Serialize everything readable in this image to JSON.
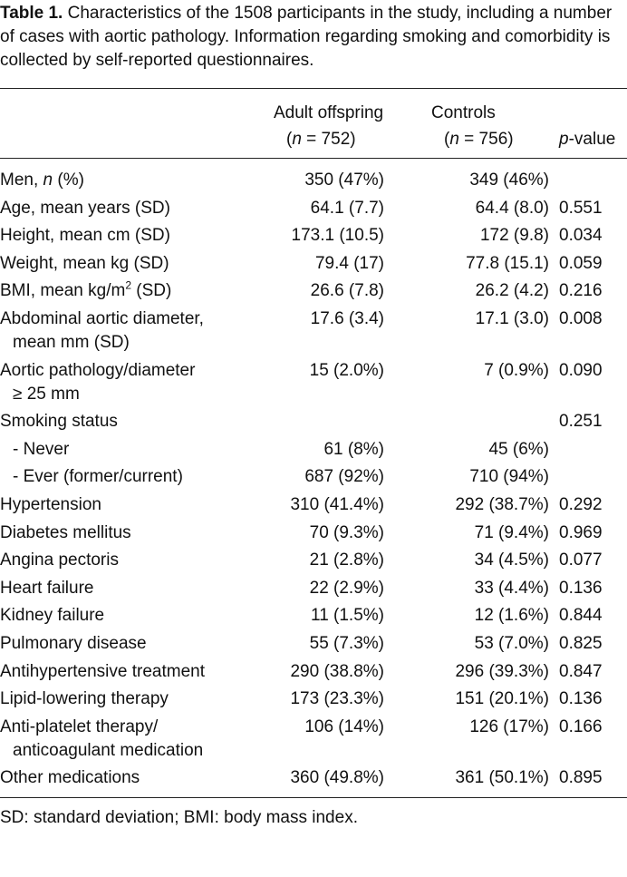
{
  "caption": {
    "label": "Table 1.",
    "text": "Characteristics of the 1508 participants in the study, including a number of cases with aortic pathology. Information regarding smoking and comorbidity is collected by self-reported questionnaires."
  },
  "table": {
    "columns": [
      [
        [
          "Adult offspring"
        ],
        [
          "(",
          {
            "text": "n",
            "style": "italic"
          },
          " = 752)"
        ]
      ],
      [
        [
          "Controls"
        ],
        [
          "(",
          {
            "text": "n",
            "style": "italic"
          },
          " = 756)"
        ]
      ],
      [
        [
          {
            "text": "p",
            "style": "italic"
          },
          "-value"
        ]
      ]
    ],
    "rows": [
      {
        "label": [
          [
            "Men, ",
            {
              "text": "n",
              "style": "italic"
            },
            " (%)"
          ]
        ],
        "values": [
          "350 (47%)",
          "349 (46%)",
          null
        ]
      },
      {
        "label": [
          [
            "Age, mean years (SD)"
          ]
        ],
        "values": [
          "64.1 (7.7)",
          "64.4 (8.0)",
          "0.551"
        ]
      },
      {
        "label": [
          [
            "Height, mean cm (SD)"
          ]
        ],
        "values": [
          "173.1 (10.5)",
          "172 (9.8)",
          "0.034"
        ]
      },
      {
        "label": [
          [
            "Weight, mean kg (SD)"
          ]
        ],
        "values": [
          "79.4 (17)",
          "77.8 (15.1)",
          "0.059"
        ]
      },
      {
        "label": [
          [
            "BMI, mean kg/m",
            {
              "text": "2",
              "style": "superscript"
            },
            " (SD)"
          ]
        ],
        "values": [
          "26.6 (7.8)",
          "26.2 (4.2)",
          "0.216"
        ]
      },
      {
        "label": [
          [
            "Abdominal aortic diameter,"
          ],
          [
            "mean mm (SD)"
          ]
        ],
        "values": [
          "17.6 (3.4)",
          "17.1 (3.0)",
          "0.008"
        ]
      },
      {
        "label": [
          [
            "Aortic pathology/diameter"
          ],
          [
            "≥ 25 mm"
          ]
        ],
        "values": [
          "15 (2.0%)",
          "7 (0.9%)",
          "0.090"
        ]
      },
      {
        "label": [
          [
            "Smoking status"
          ]
        ],
        "values": [
          null,
          null,
          "0.251"
        ]
      },
      {
        "label": [
          [
            "- Never"
          ]
        ],
        "indent": true,
        "values": [
          "61 (8%)",
          "45 (6%)",
          null
        ]
      },
      {
        "label": [
          [
            "- Ever (former/current)"
          ]
        ],
        "indent": true,
        "values": [
          "687 (92%)",
          "710 (94%)",
          null
        ]
      },
      {
        "label": [
          [
            "Hypertension"
          ]
        ],
        "values": [
          "310 (41.4%)",
          "292 (38.7%)",
          "0.292"
        ]
      },
      {
        "label": [
          [
            "Diabetes mellitus"
          ]
        ],
        "values": [
          "70 (9.3%)",
          "71 (9.4%)",
          "0.969"
        ]
      },
      {
        "label": [
          [
            "Angina pectoris"
          ]
        ],
        "values": [
          "21 (2.8%)",
          "34 (4.5%)",
          "0.077"
        ]
      },
      {
        "label": [
          [
            "Heart failure"
          ]
        ],
        "values": [
          "22 (2.9%)",
          "33 (4.4%)",
          "0.136"
        ]
      },
      {
        "label": [
          [
            "Kidney failure"
          ]
        ],
        "values": [
          "11 (1.5%)",
          "12 (1.6%)",
          "0.844"
        ]
      },
      {
        "label": [
          [
            "Pulmonary disease"
          ]
        ],
        "values": [
          "55 (7.3%)",
          "53 (7.0%)",
          "0.825"
        ]
      },
      {
        "label": [
          [
            "Antihypertensive treatment"
          ]
        ],
        "values": [
          "290 (38.8%)",
          "296 (39.3%)",
          "0.847"
        ]
      },
      {
        "label": [
          [
            "Lipid-lowering therapy"
          ]
        ],
        "values": [
          "173 (23.3%)",
          "151 (20.1%)",
          "0.136"
        ]
      },
      {
        "label": [
          [
            "Anti-platelet therapy/"
          ],
          [
            "anticoagulant medication"
          ]
        ],
        "values": [
          "106 (14%)",
          "126 (17%)",
          "0.166"
        ]
      },
      {
        "label": [
          [
            "Other medications"
          ]
        ],
        "values": [
          "360 (49.8%)",
          "361 (50.1%)",
          "0.895"
        ]
      }
    ]
  },
  "footnote": "SD: standard deviation; BMI: body mass index."
}
